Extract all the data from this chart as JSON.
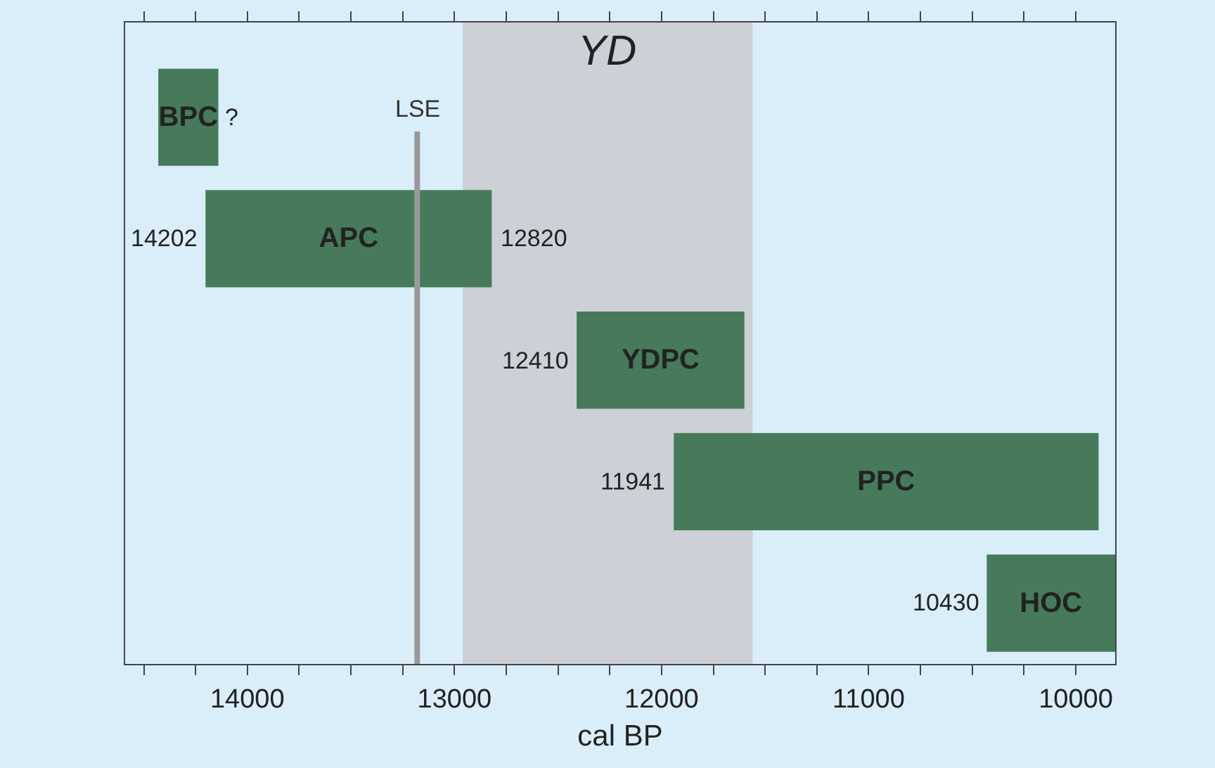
{
  "chart_data": {
    "type": "bar",
    "orientation": "horizontal",
    "xlabel": "cal BP",
    "categories": [
      "BPC",
      "APC",
      "YDPC",
      "PPC",
      "HOC"
    ],
    "base": [
      14430,
      14202,
      12410,
      11941,
      10430
    ],
    "values": [
      -290,
      -1382,
      -810,
      -2051,
      -620
    ],
    "color": "#467a5a",
    "xlim": [
      14590,
      9810
    ],
    "xticks": [
      {
        "value": 14500,
        "label": null
      },
      {
        "value": 14250,
        "label": null
      },
      14000,
      {
        "value": 13750,
        "label": null
      },
      {
        "value": 13500,
        "label": null
      },
      {
        "value": 13250,
        "label": null
      },
      13000,
      {
        "value": 12750,
        "label": null
      },
      {
        "value": 12500,
        "label": null
      },
      {
        "value": 12250,
        "label": null
      },
      12000,
      {
        "value": 11750,
        "label": null
      },
      {
        "value": 11500,
        "label": null
      },
      {
        "value": 11250,
        "label": null
      },
      11000,
      {
        "value": 10750,
        "label": null
      },
      {
        "value": 10500,
        "label": null
      },
      {
        "value": 10250,
        "label": null
      },
      10000
    ],
    "tick_labels": "x",
    "bands": [
      {
        "axis": "x",
        "from": 12960,
        "to": 11560,
        "label": "YD",
        "color": "#cdd0d6"
      }
    ],
    "ref_lines": [
      {
        "axis": "x",
        "value": 13180,
        "label": "LSE",
        "color": "#999999"
      }
    ],
    "annotations": [
      {
        "text": "?",
        "x": 14150,
        "y": "BPC"
      },
      {
        "text": "14202",
        "x": 14202,
        "y": "APC"
      },
      {
        "text": "12820",
        "x": 12820,
        "y": "APC"
      },
      {
        "text": "12410",
        "x": 12410,
        "y": "YDPC"
      },
      {
        "text": "11941",
        "x": 11941,
        "y": "PPC"
      },
      {
        "text": "10430",
        "x": 10430,
        "y": "HOC"
      }
    ],
    "grid": false,
    "legend": false
  }
}
